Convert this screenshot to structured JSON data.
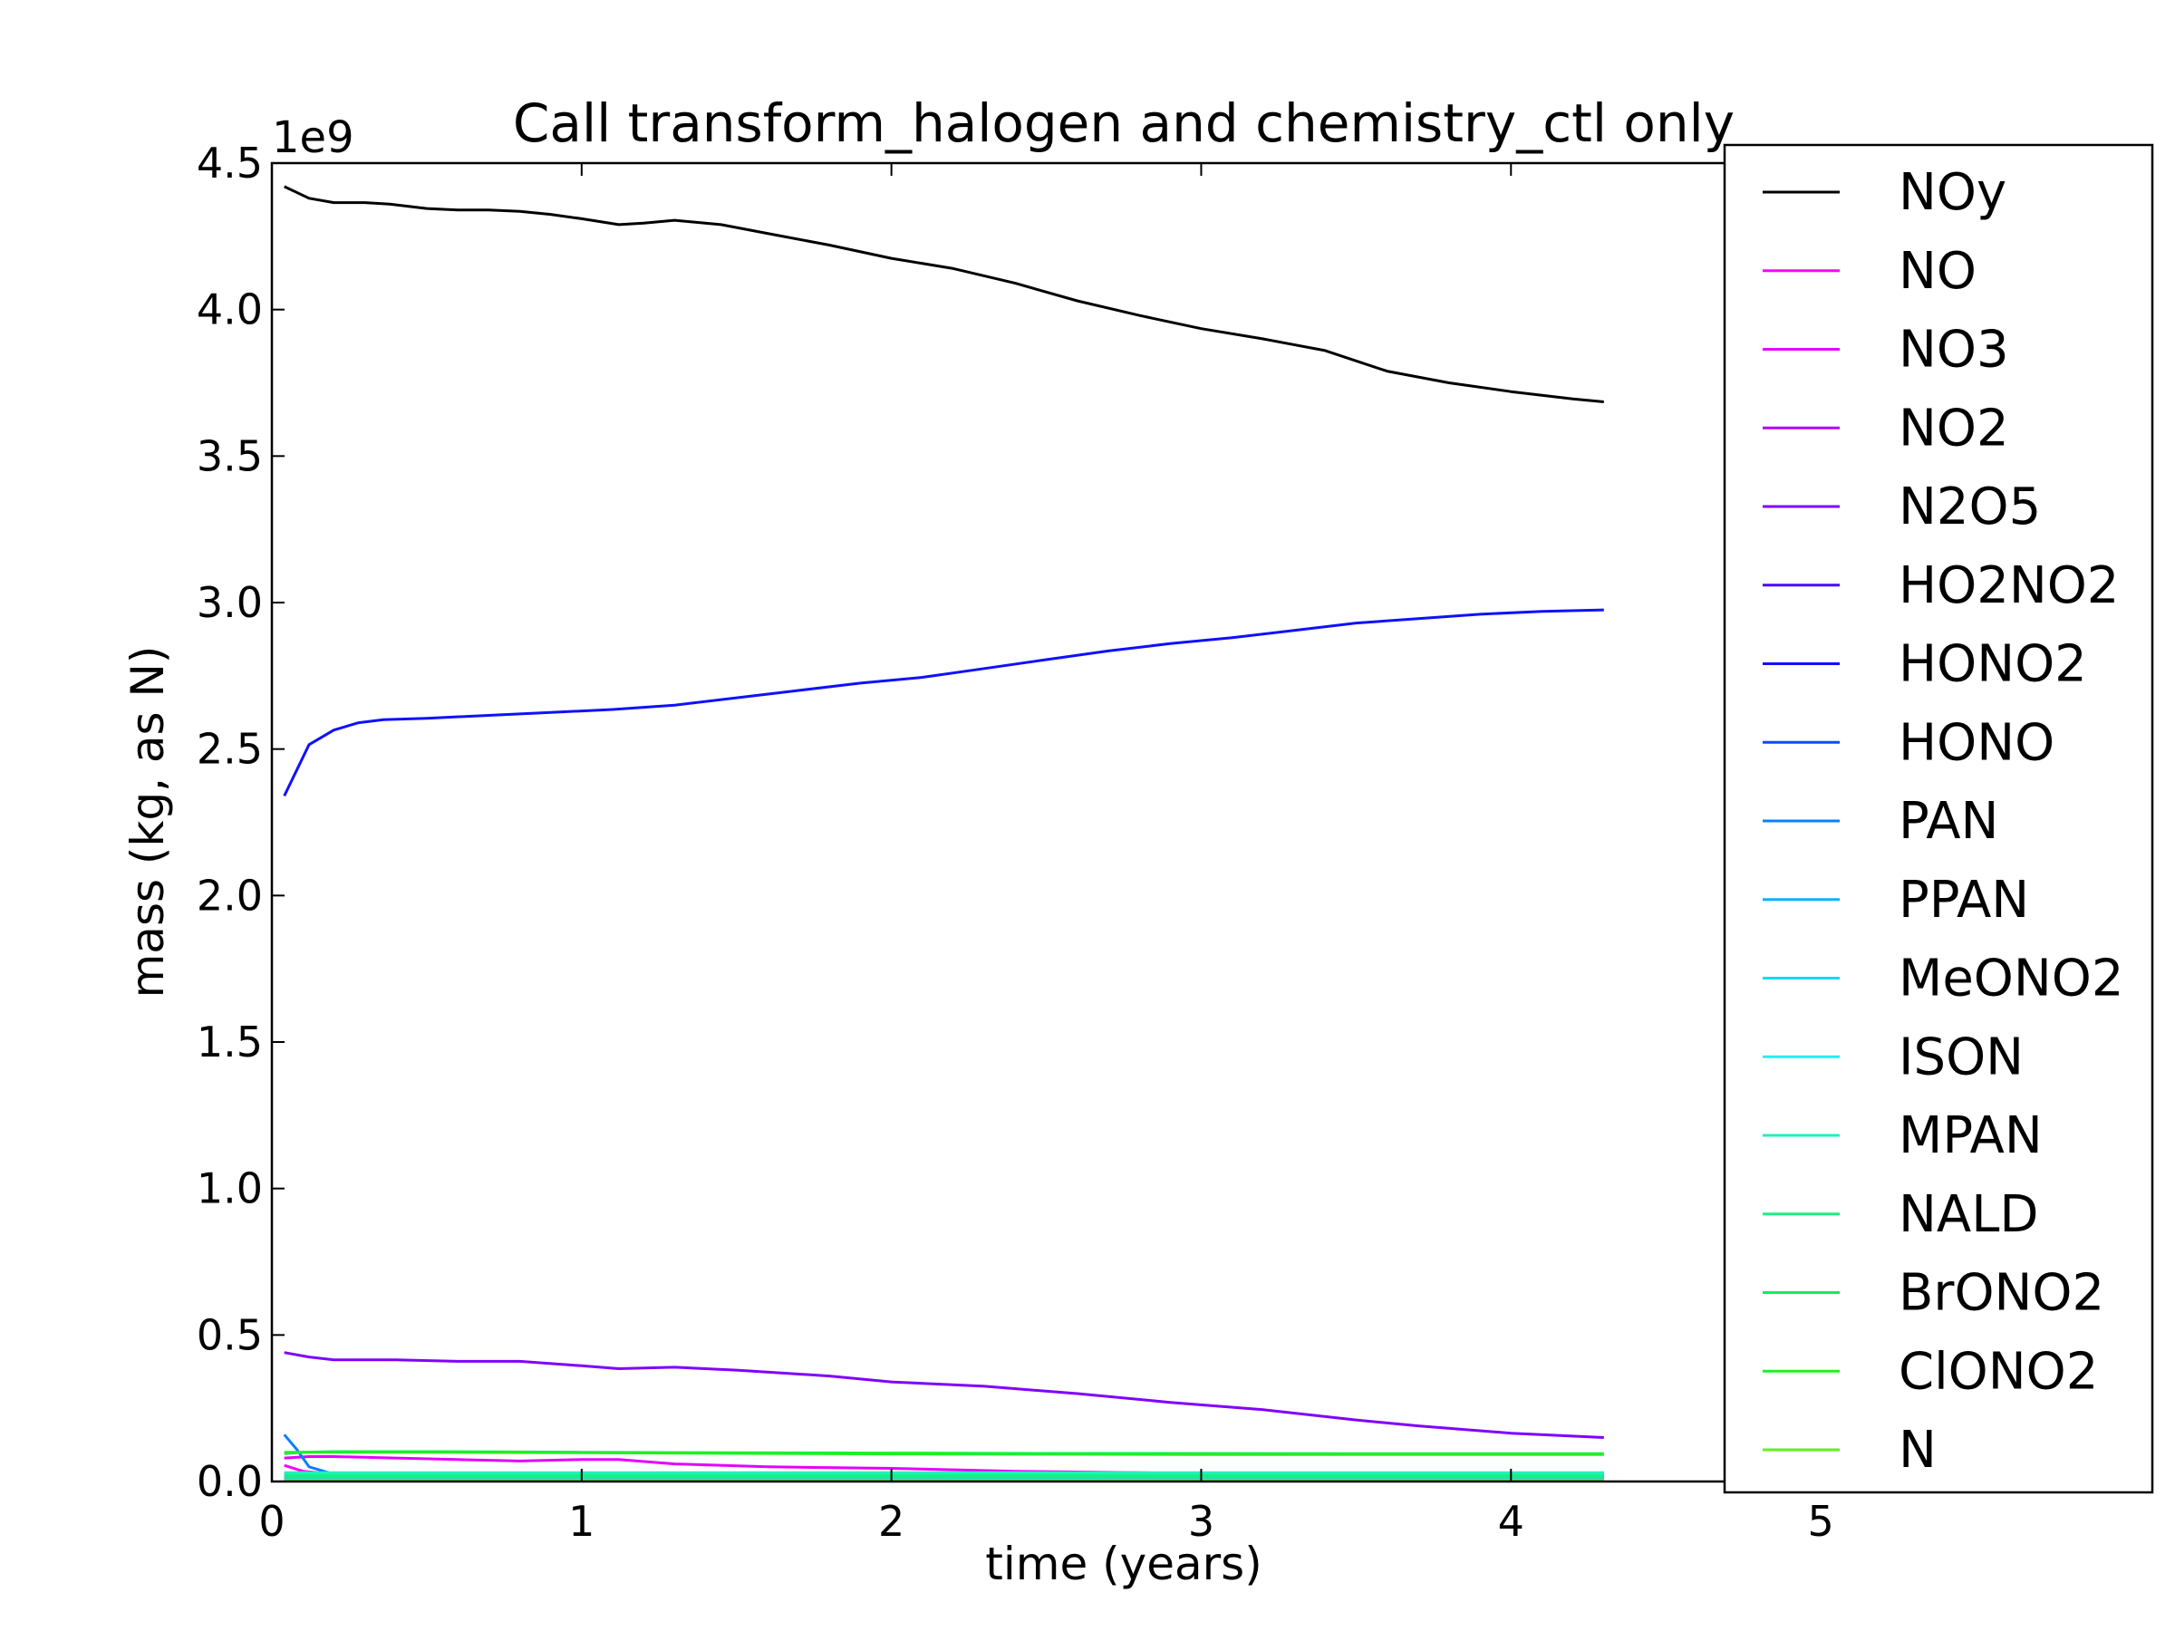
{
  "chart_data": {
    "type": "line",
    "title": "Call transform_halogen and chemistry_ctl only",
    "xlabel": "time (years)",
    "ylabel": "mass (kg, as N)",
    "y_offset_label": "1e9",
    "xlim": [
      0,
      5.5
    ],
    "ylim": [
      0,
      4.5
    ],
    "xticks": [
      0,
      1,
      2,
      3,
      4,
      5
    ],
    "xtick_labels": [
      "0",
      "1",
      "2",
      "3",
      "4",
      "5"
    ],
    "yticks": [
      0,
      0.5,
      1.0,
      1.5,
      2.0,
      2.5,
      3.0,
      3.5,
      4.0,
      4.5
    ],
    "ytick_labels": [
      "0.0",
      "0.5",
      "1.0",
      "1.5",
      "2.0",
      "2.5",
      "3.0",
      "3.5",
      "4.0",
      "4.5"
    ],
    "grid": false,
    "legend_position": "right",
    "series": [
      {
        "name": "NOy",
        "color": "#000000",
        "x": [
          0.04,
          0.12,
          0.2,
          0.3,
          0.38,
          0.5,
          0.6,
          0.7,
          0.8,
          0.9,
          1.0,
          1.12,
          1.2,
          1.3,
          1.45,
          1.6,
          1.8,
          2.0,
          2.2,
          2.4,
          2.6,
          2.8,
          3.0,
          3.2,
          3.4,
          3.6,
          3.8,
          4.0,
          4.2,
          4.3
        ],
        "y": [
          4.42,
          4.38,
          4.365,
          4.365,
          4.36,
          4.345,
          4.34,
          4.34,
          4.335,
          4.325,
          4.31,
          4.29,
          4.295,
          4.305,
          4.29,
          4.26,
          4.22,
          4.175,
          4.14,
          4.09,
          4.03,
          3.98,
          3.935,
          3.9,
          3.86,
          3.79,
          3.75,
          3.72,
          3.695,
          3.685
        ]
      },
      {
        "name": "NO",
        "color": "#ff00ff",
        "x": [
          0.04,
          0.1,
          0.2,
          0.4,
          0.8,
          1.2,
          1.6,
          2.0,
          2.4,
          2.8,
          3.2,
          3.6,
          4.0,
          4.3
        ],
        "y": [
          0.055,
          0.035,
          0.025,
          0.025,
          0.025,
          0.025,
          0.025,
          0.025,
          0.025,
          0.02,
          0.02,
          0.02,
          0.02,
          0.02
        ]
      },
      {
        "name": "NO3",
        "color": "#e400ff",
        "x": [
          0.04,
          0.12,
          0.2,
          0.4,
          0.6,
          0.8,
          1.0,
          1.12,
          1.3,
          1.6,
          2.0,
          2.4,
          2.8,
          3.2,
          3.6,
          4.0,
          4.3
        ],
        "y": [
          0.08,
          0.085,
          0.085,
          0.08,
          0.075,
          0.07,
          0.075,
          0.075,
          0.06,
          0.05,
          0.045,
          0.035,
          0.03,
          0.025,
          0.025,
          0.025,
          0.025
        ]
      },
      {
        "name": "NO2",
        "color": "#b400ff",
        "x": [
          0.04,
          0.5,
          1.0,
          1.5,
          2.0,
          2.5,
          3.0,
          3.5,
          4.0,
          4.3
        ],
        "y": [
          0.025,
          0.022,
          0.022,
          0.02,
          0.02,
          0.02,
          0.02,
          0.02,
          0.02,
          0.02
        ]
      },
      {
        "name": "N2O5",
        "color": "#8000ff",
        "x": [
          0.04,
          0.12,
          0.2,
          0.4,
          0.6,
          0.8,
          1.0,
          1.12,
          1.3,
          1.5,
          1.8,
          2.0,
          2.3,
          2.6,
          2.9,
          3.2,
          3.5,
          3.7,
          4.0,
          4.3
        ],
        "y": [
          0.44,
          0.425,
          0.415,
          0.415,
          0.41,
          0.41,
          0.395,
          0.385,
          0.39,
          0.38,
          0.36,
          0.34,
          0.325,
          0.3,
          0.27,
          0.245,
          0.21,
          0.19,
          0.165,
          0.15
        ]
      },
      {
        "name": "HO2NO2",
        "color": "#4a00ff",
        "x": [
          0.04,
          0.5,
          1.0,
          1.5,
          2.0,
          2.5,
          3.0,
          3.5,
          4.0,
          4.3
        ],
        "y": [
          0.02,
          0.02,
          0.018,
          0.018,
          0.018,
          0.018,
          0.018,
          0.018,
          0.018,
          0.018
        ]
      },
      {
        "name": "HONO2",
        "color": "#1010ff",
        "x": [
          0.04,
          0.12,
          0.2,
          0.28,
          0.36,
          0.5,
          0.7,
          0.9,
          1.1,
          1.3,
          1.5,
          1.7,
          1.9,
          2.1,
          2.3,
          2.5,
          2.7,
          2.9,
          3.1,
          3.3,
          3.5,
          3.7,
          3.9,
          4.1,
          4.3
        ],
        "y": [
          2.34,
          2.515,
          2.565,
          2.59,
          2.6,
          2.605,
          2.615,
          2.625,
          2.635,
          2.65,
          2.675,
          2.7,
          2.725,
          2.745,
          2.775,
          2.805,
          2.835,
          2.86,
          2.88,
          2.905,
          2.93,
          2.945,
          2.96,
          2.97,
          2.975
        ]
      },
      {
        "name": "HONO",
        "color": "#0a4cff",
        "x": [
          0.04,
          0.5,
          1.0,
          1.5,
          2.0,
          2.5,
          3.0,
          3.5,
          4.0,
          4.3
        ],
        "y": [
          0.01,
          0.01,
          0.01,
          0.01,
          0.01,
          0.01,
          0.01,
          0.01,
          0.01,
          0.01
        ]
      },
      {
        "name": "PAN",
        "color": "#0a80ff",
        "x": [
          0.04,
          0.08,
          0.12,
          0.2,
          0.3,
          0.6,
          1.0,
          1.5,
          2.0,
          2.5,
          3.0,
          3.5,
          4.0,
          4.3
        ],
        "y": [
          0.16,
          0.11,
          0.05,
          0.025,
          0.02,
          0.02,
          0.02,
          0.02,
          0.02,
          0.02,
          0.02,
          0.02,
          0.02,
          0.02
        ]
      },
      {
        "name": "PPAN",
        "color": "#10b0ff",
        "x": [
          0.04,
          0.5,
          1.0,
          1.5,
          2.0,
          2.5,
          3.0,
          3.5,
          4.0,
          4.3
        ],
        "y": [
          0.012,
          0.012,
          0.012,
          0.012,
          0.012,
          0.012,
          0.012,
          0.012,
          0.012,
          0.012
        ]
      },
      {
        "name": "MeONO2",
        "color": "#10dcf0",
        "x": [
          0.04,
          0.5,
          1.0,
          1.5,
          2.0,
          2.5,
          3.0,
          3.5,
          4.0,
          4.3
        ],
        "y": [
          0.015,
          0.015,
          0.015,
          0.015,
          0.015,
          0.015,
          0.015,
          0.015,
          0.015,
          0.015
        ]
      },
      {
        "name": "ISON",
        "color": "#20f0f0",
        "x": [
          0.04,
          0.5,
          1.0,
          1.5,
          2.0,
          2.5,
          3.0,
          3.5,
          4.0,
          4.3
        ],
        "y": [
          0.025,
          0.025,
          0.025,
          0.025,
          0.025,
          0.025,
          0.025,
          0.025,
          0.025,
          0.025
        ]
      },
      {
        "name": "MPAN",
        "color": "#20f0c0",
        "x": [
          0.04,
          0.5,
          1.0,
          1.5,
          2.0,
          2.5,
          3.0,
          3.5,
          4.0,
          4.3
        ],
        "y": [
          0.03,
          0.03,
          0.03,
          0.03,
          0.03,
          0.03,
          0.03,
          0.03,
          0.03,
          0.03
        ]
      },
      {
        "name": "NALD",
        "color": "#18f080",
        "x": [
          0.04,
          0.5,
          1.0,
          1.5,
          2.0,
          2.5,
          3.0,
          3.5,
          4.0,
          4.3
        ],
        "y": [
          0.02,
          0.02,
          0.02,
          0.02,
          0.02,
          0.02,
          0.02,
          0.02,
          0.02,
          0.02
        ]
      },
      {
        "name": "BrONO2",
        "color": "#10f050",
        "x": [
          0.04,
          0.1,
          0.2,
          0.5,
          1.0,
          1.5,
          2.0,
          2.5,
          3.0,
          3.5,
          4.0,
          4.3
        ],
        "y": [
          0.095,
          0.1,
          0.102,
          0.102,
          0.1,
          0.098,
          0.097,
          0.096,
          0.096,
          0.095,
          0.095,
          0.095
        ]
      },
      {
        "name": "ClONO2",
        "color": "#20f020",
        "x": [
          0.04,
          0.5,
          1.0,
          1.5,
          2.0,
          2.5,
          3.0,
          3.5,
          4.0,
          4.3
        ],
        "y": [
          0.1,
          0.1,
          0.098,
          0.096,
          0.094,
          0.093,
          0.092,
          0.092,
          0.092,
          0.092
        ]
      },
      {
        "name": "N",
        "color": "#60f020",
        "x": [
          0.04,
          0.5,
          1.0,
          1.5,
          2.0,
          2.5,
          3.0,
          3.5,
          4.0,
          4.3
        ],
        "y": [
          0.005,
          0.005,
          0.005,
          0.005,
          0.005,
          0.005,
          0.005,
          0.005,
          0.005,
          0.005
        ]
      }
    ]
  }
}
